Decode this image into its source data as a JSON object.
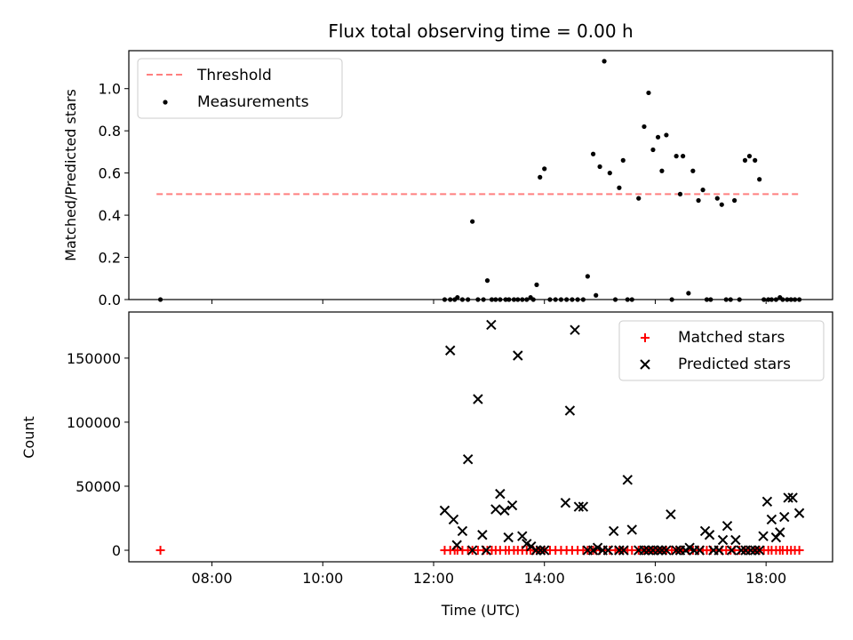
{
  "chart_data": [
    {
      "type": "scatter",
      "title": "Flux total observing time = 0.00 h",
      "xlabel": "",
      "ylabel": "Matched/Predicted stars",
      "ylim": [
        0,
        1.18
      ],
      "yticks": [
        0.0,
        0.2,
        0.4,
        0.6,
        0.8,
        1.0
      ],
      "ytick_labels": [
        "0.0",
        "0.2",
        "0.4",
        "0.6",
        "0.8",
        "1.0"
      ],
      "xlim": [
        6.5,
        19.2
      ],
      "xticks": [
        8,
        10,
        12,
        14,
        16,
        18
      ],
      "legend_position": "upper-left",
      "series": [
        {
          "name": "Threshold",
          "kind": "dashed-line",
          "color": "#ff7f7f",
          "x": [
            7.0,
            18.63
          ],
          "y": [
            0.5,
            0.5
          ]
        },
        {
          "name": "Measurements",
          "kind": "dots",
          "color": "#000000",
          "points": [
            [
              7.07,
              0.0
            ],
            [
              12.2,
              0.0
            ],
            [
              12.3,
              0.0
            ],
            [
              12.38,
              0.0
            ],
            [
              12.43,
              0.01
            ],
            [
              12.52,
              0.0
            ],
            [
              12.62,
              0.0
            ],
            [
              12.7,
              0.37
            ],
            [
              12.8,
              0.0
            ],
            [
              12.9,
              0.0
            ],
            [
              12.97,
              0.09
            ],
            [
              13.05,
              0.0
            ],
            [
              13.12,
              0.0
            ],
            [
              13.2,
              0.0
            ],
            [
              13.3,
              0.0
            ],
            [
              13.36,
              0.0
            ],
            [
              13.45,
              0.0
            ],
            [
              13.52,
              0.0
            ],
            [
              13.6,
              0.0
            ],
            [
              13.68,
              0.0
            ],
            [
              13.75,
              0.01
            ],
            [
              13.8,
              0.0
            ],
            [
              13.86,
              0.07
            ],
            [
              13.92,
              0.58
            ],
            [
              14.0,
              0.62
            ],
            [
              14.1,
              0.0
            ],
            [
              14.2,
              0.0
            ],
            [
              14.3,
              0.0
            ],
            [
              14.4,
              0.0
            ],
            [
              14.5,
              0.0
            ],
            [
              14.6,
              0.0
            ],
            [
              14.7,
              0.0
            ],
            [
              14.78,
              0.11
            ],
            [
              14.88,
              0.69
            ],
            [
              14.93,
              0.02
            ],
            [
              15.0,
              0.63
            ],
            [
              15.08,
              1.13
            ],
            [
              15.18,
              0.6
            ],
            [
              15.28,
              0.0
            ],
            [
              15.35,
              0.53
            ],
            [
              15.42,
              0.66
            ],
            [
              15.5,
              0.0
            ],
            [
              15.58,
              0.0
            ],
            [
              15.7,
              0.48
            ],
            [
              15.8,
              0.82
            ],
            [
              15.88,
              0.98
            ],
            [
              15.96,
              0.71
            ],
            [
              16.05,
              0.77
            ],
            [
              16.12,
              0.61
            ],
            [
              16.2,
              0.78
            ],
            [
              16.3,
              0.0
            ],
            [
              16.38,
              0.68
            ],
            [
              16.45,
              0.5
            ],
            [
              16.5,
              0.68
            ],
            [
              16.6,
              0.03
            ],
            [
              16.68,
              0.61
            ],
            [
              16.78,
              0.47
            ],
            [
              16.86,
              0.52
            ],
            [
              16.93,
              0.0
            ],
            [
              17.0,
              0.0
            ],
            [
              17.12,
              0.48
            ],
            [
              17.2,
              0.45
            ],
            [
              17.28,
              0.0
            ],
            [
              17.36,
              0.0
            ],
            [
              17.43,
              0.47
            ],
            [
              17.52,
              0.0
            ],
            [
              17.62,
              0.66
            ],
            [
              17.7,
              0.68
            ],
            [
              17.8,
              0.66
            ],
            [
              17.88,
              0.57
            ],
            [
              17.96,
              0.0
            ],
            [
              18.04,
              0.0
            ],
            [
              18.1,
              0.0
            ],
            [
              18.18,
              0.0
            ],
            [
              18.25,
              0.01
            ],
            [
              18.3,
              0.0
            ],
            [
              18.38,
              0.0
            ],
            [
              18.45,
              0.0
            ],
            [
              18.52,
              0.0
            ],
            [
              18.6,
              0.0
            ]
          ]
        }
      ]
    },
    {
      "type": "scatter",
      "title": "",
      "xlabel": "Time (UTC)",
      "ylabel": "Count",
      "ylim": [
        -9000,
        186000
      ],
      "yticks": [
        0,
        50000,
        100000,
        150000
      ],
      "ytick_labels": [
        "0",
        "50000",
        "100000",
        "150000"
      ],
      "xlim": [
        6.5,
        19.2
      ],
      "xticks": [
        8,
        10,
        12,
        14,
        16,
        18
      ],
      "xtick_labels": [
        "08:00",
        "10:00",
        "12:00",
        "14:00",
        "16:00",
        "18:00"
      ],
      "legend_position": "upper-right",
      "series": [
        {
          "name": "Matched stars",
          "kind": "plus",
          "color": "#ff0000",
          "points": [
            [
              7.07,
              0
            ],
            [
              12.2,
              0
            ],
            [
              12.3,
              0
            ],
            [
              12.38,
              0
            ],
            [
              12.43,
              0
            ],
            [
              12.52,
              0
            ],
            [
              12.62,
              0
            ],
            [
              12.7,
              0
            ],
            [
              12.8,
              0
            ],
            [
              12.9,
              0
            ],
            [
              12.97,
              0
            ],
            [
              13.05,
              0
            ],
            [
              13.12,
              0
            ],
            [
              13.2,
              0
            ],
            [
              13.3,
              0
            ],
            [
              13.36,
              0
            ],
            [
              13.45,
              0
            ],
            [
              13.52,
              0
            ],
            [
              13.6,
              0
            ],
            [
              13.68,
              0
            ],
            [
              13.75,
              0
            ],
            [
              13.8,
              0
            ],
            [
              13.86,
              0
            ],
            [
              13.92,
              0
            ],
            [
              14.0,
              0
            ],
            [
              14.1,
              0
            ],
            [
              14.2,
              0
            ],
            [
              14.3,
              0
            ],
            [
              14.4,
              0
            ],
            [
              14.5,
              0
            ],
            [
              14.6,
              0
            ],
            [
              14.7,
              0
            ],
            [
              14.78,
              0
            ],
            [
              14.88,
              0
            ],
            [
              14.93,
              0
            ],
            [
              15.0,
              0
            ],
            [
              15.08,
              0
            ],
            [
              15.18,
              0
            ],
            [
              15.28,
              0
            ],
            [
              15.35,
              0
            ],
            [
              15.42,
              0
            ],
            [
              15.5,
              0
            ],
            [
              15.58,
              0
            ],
            [
              15.7,
              0
            ],
            [
              15.8,
              0
            ],
            [
              15.88,
              0
            ],
            [
              15.96,
              0
            ],
            [
              16.05,
              0
            ],
            [
              16.12,
              0
            ],
            [
              16.2,
              0
            ],
            [
              16.3,
              0
            ],
            [
              16.38,
              0
            ],
            [
              16.45,
              0
            ],
            [
              16.5,
              0
            ],
            [
              16.6,
              0
            ],
            [
              16.68,
              0
            ],
            [
              16.78,
              0
            ],
            [
              16.86,
              0
            ],
            [
              16.93,
              0
            ],
            [
              17.0,
              0
            ],
            [
              17.12,
              0
            ],
            [
              17.2,
              0
            ],
            [
              17.28,
              0
            ],
            [
              17.36,
              0
            ],
            [
              17.43,
              0
            ],
            [
              17.52,
              0
            ],
            [
              17.62,
              0
            ],
            [
              17.7,
              0
            ],
            [
              17.8,
              0
            ],
            [
              17.88,
              0
            ],
            [
              17.96,
              0
            ],
            [
              18.04,
              0
            ],
            [
              18.1,
              0
            ],
            [
              18.18,
              0
            ],
            [
              18.25,
              0
            ],
            [
              18.3,
              0
            ],
            [
              18.38,
              0
            ],
            [
              18.45,
              0
            ],
            [
              18.52,
              0
            ],
            [
              18.6,
              0
            ]
          ]
        },
        {
          "name": "Predicted stars",
          "kind": "x",
          "color": "#000000",
          "points": [
            [
              12.2,
              31000
            ],
            [
              12.3,
              156000
            ],
            [
              12.36,
              24000
            ],
            [
              12.42,
              4000
            ],
            [
              12.52,
              15000
            ],
            [
              12.62,
              71000
            ],
            [
              12.7,
              0
            ],
            [
              12.8,
              118000
            ],
            [
              12.88,
              12000
            ],
            [
              12.95,
              0
            ],
            [
              13.04,
              176000
            ],
            [
              13.12,
              32000
            ],
            [
              13.2,
              44000
            ],
            [
              13.28,
              31000
            ],
            [
              13.35,
              10000
            ],
            [
              13.42,
              35000
            ],
            [
              13.52,
              152000
            ],
            [
              13.6,
              11000
            ],
            [
              13.68,
              5000
            ],
            [
              13.76,
              3000
            ],
            [
              13.85,
              0
            ],
            [
              13.93,
              0
            ],
            [
              14.0,
              0
            ],
            [
              14.38,
              37000
            ],
            [
              14.46,
              109000
            ],
            [
              14.55,
              172000
            ],
            [
              14.62,
              34000
            ],
            [
              14.7,
              34000
            ],
            [
              14.78,
              0
            ],
            [
              14.88,
              0
            ],
            [
              14.96,
              2000
            ],
            [
              15.05,
              0
            ],
            [
              15.15,
              0
            ],
            [
              15.25,
              15000
            ],
            [
              15.35,
              0
            ],
            [
              15.43,
              0
            ],
            [
              15.5,
              55000
            ],
            [
              15.58,
              16000
            ],
            [
              15.7,
              0
            ],
            [
              15.8,
              0
            ],
            [
              15.88,
              0
            ],
            [
              15.96,
              0
            ],
            [
              16.05,
              0
            ],
            [
              16.12,
              0
            ],
            [
              16.2,
              0
            ],
            [
              16.28,
              28000
            ],
            [
              16.38,
              0
            ],
            [
              16.45,
              0
            ],
            [
              16.55,
              0
            ],
            [
              16.62,
              2000
            ],
            [
              16.7,
              0
            ],
            [
              16.8,
              0
            ],
            [
              16.9,
              15000
            ],
            [
              16.98,
              12000
            ],
            [
              17.05,
              0
            ],
            [
              17.15,
              0
            ],
            [
              17.22,
              8000
            ],
            [
              17.3,
              19000
            ],
            [
              17.38,
              0
            ],
            [
              17.45,
              8000
            ],
            [
              17.55,
              0
            ],
            [
              17.63,
              0
            ],
            [
              17.72,
              0
            ],
            [
              17.8,
              0
            ],
            [
              17.88,
              0
            ],
            [
              17.95,
              11000
            ],
            [
              18.02,
              38000
            ],
            [
              18.1,
              24000
            ],
            [
              18.18,
              10000
            ],
            [
              18.25,
              14000
            ],
            [
              18.33,
              26000
            ],
            [
              18.4,
              41000
            ],
            [
              18.48,
              41000
            ],
            [
              18.6,
              29000
            ]
          ]
        }
      ]
    }
  ]
}
